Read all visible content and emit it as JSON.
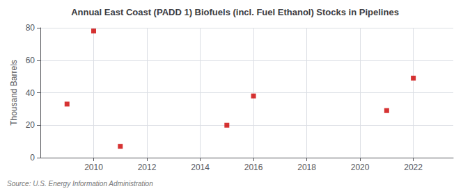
{
  "chart_data": {
    "type": "scatter",
    "title": "Annual East Coast (PADD 1) Biofuels (incl. Fuel Ethanol) Stocks in Pipelines",
    "ylabel": "Thousand Barrels",
    "source": "Source: U.S. Energy Information Administration",
    "x": [
      2009,
      2010,
      2011,
      2015,
      2016,
      2021,
      2022
    ],
    "values": [
      33,
      78,
      7,
      20,
      38,
      29,
      49
    ],
    "color": "#cc0000",
    "marker": "square",
    "xlim": [
      2008,
      2023.5
    ],
    "xticks": [
      2010,
      2012,
      2014,
      2016,
      2018,
      2020,
      2022
    ],
    "ylim": [
      0,
      80
    ],
    "yticks": [
      0,
      20,
      40,
      60,
      80
    ],
    "grid": true
  }
}
